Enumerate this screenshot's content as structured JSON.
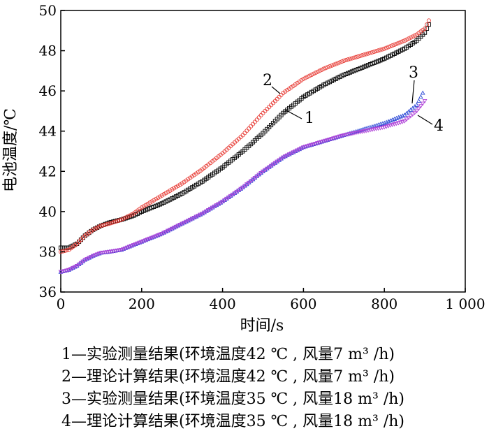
{
  "chart_data": {
    "type": "scatter",
    "xlabel": "时间/s",
    "ylabel": "电池温度/℃",
    "xlim": [
      0,
      1000
    ],
    "ylim": [
      36,
      50
    ],
    "xticks": [
      0,
      200,
      400,
      600,
      800,
      1000
    ],
    "xtick_labels": [
      "0",
      "200",
      "400",
      "600",
      "800",
      "1 000"
    ],
    "yticks": [
      36,
      38,
      40,
      42,
      44,
      46,
      48,
      50
    ],
    "ytick_labels": [
      "36",
      "38",
      "40",
      "42",
      "44",
      "46",
      "48",
      "50"
    ],
    "grid": false,
    "series": [
      {
        "name": "1",
        "marker": "square",
        "color": "#000000",
        "x": [
          0,
          20,
          40,
          60,
          80,
          100,
          120,
          150,
          180,
          200,
          250,
          300,
          350,
          400,
          450,
          500,
          550,
          600,
          650,
          700,
          750,
          800,
          850,
          880,
          900,
          910
        ],
        "y": [
          38.2,
          38.2,
          38.4,
          38.8,
          39.1,
          39.3,
          39.45,
          39.6,
          39.8,
          40.0,
          40.4,
          40.9,
          41.5,
          42.2,
          43.0,
          43.9,
          44.9,
          45.7,
          46.3,
          46.8,
          47.2,
          47.6,
          48.1,
          48.5,
          48.9,
          49.3
        ]
      },
      {
        "name": "2",
        "marker": "circle",
        "color": "#e8403a",
        "x": [
          0,
          20,
          40,
          60,
          80,
          100,
          120,
          150,
          180,
          200,
          250,
          300,
          350,
          400,
          450,
          500,
          550,
          600,
          650,
          700,
          750,
          800,
          850,
          880,
          900,
          910
        ],
        "y": [
          38.0,
          38.1,
          38.4,
          38.8,
          39.1,
          39.3,
          39.4,
          39.6,
          39.9,
          40.2,
          40.8,
          41.4,
          42.1,
          42.9,
          43.8,
          44.9,
          45.9,
          46.6,
          47.1,
          47.5,
          47.8,
          48.1,
          48.5,
          48.8,
          49.1,
          49.5
        ]
      },
      {
        "name": "3",
        "marker": "triangle",
        "color": "#2e4bd6",
        "x": [
          0,
          20,
          40,
          60,
          80,
          100,
          120,
          150,
          200,
          250,
          300,
          350,
          400,
          450,
          500,
          550,
          600,
          650,
          700,
          750,
          800,
          850,
          880,
          895
        ],
        "y": [
          37.0,
          37.1,
          37.3,
          37.6,
          37.8,
          37.95,
          38.0,
          38.1,
          38.5,
          38.9,
          39.4,
          39.9,
          40.5,
          41.2,
          42.0,
          42.7,
          43.2,
          43.5,
          43.8,
          44.1,
          44.4,
          44.8,
          45.3,
          45.9
        ]
      },
      {
        "name": "4",
        "marker": "triangle-down",
        "color": "#b044d8",
        "x": [
          0,
          20,
          40,
          60,
          80,
          100,
          120,
          150,
          200,
          250,
          300,
          350,
          400,
          450,
          500,
          550,
          600,
          650,
          700,
          750,
          800,
          850,
          880,
          900
        ],
        "y": [
          37.0,
          37.1,
          37.3,
          37.6,
          37.8,
          37.95,
          38.0,
          38.1,
          38.5,
          38.9,
          39.4,
          39.9,
          40.5,
          41.2,
          42.0,
          42.7,
          43.2,
          43.5,
          43.8,
          44.0,
          44.2,
          44.5,
          45.0,
          45.5
        ]
      }
    ],
    "annotations": [
      "1",
      "2",
      "3",
      "4"
    ],
    "legend_position": "below",
    "legend_lines": [
      "1—实验测量结果(环境温度42 ℃ , 风量7 m³ /h)",
      "2—理论计算结果(环境温度42 ℃ , 风量7 m³ /h)",
      "3—实验测量结果(环境温度35 ℃ , 风量18 m³ /h)",
      "4—理论计算结果(环境温度35 ℃ , 风量18 m³ /h)"
    ]
  }
}
